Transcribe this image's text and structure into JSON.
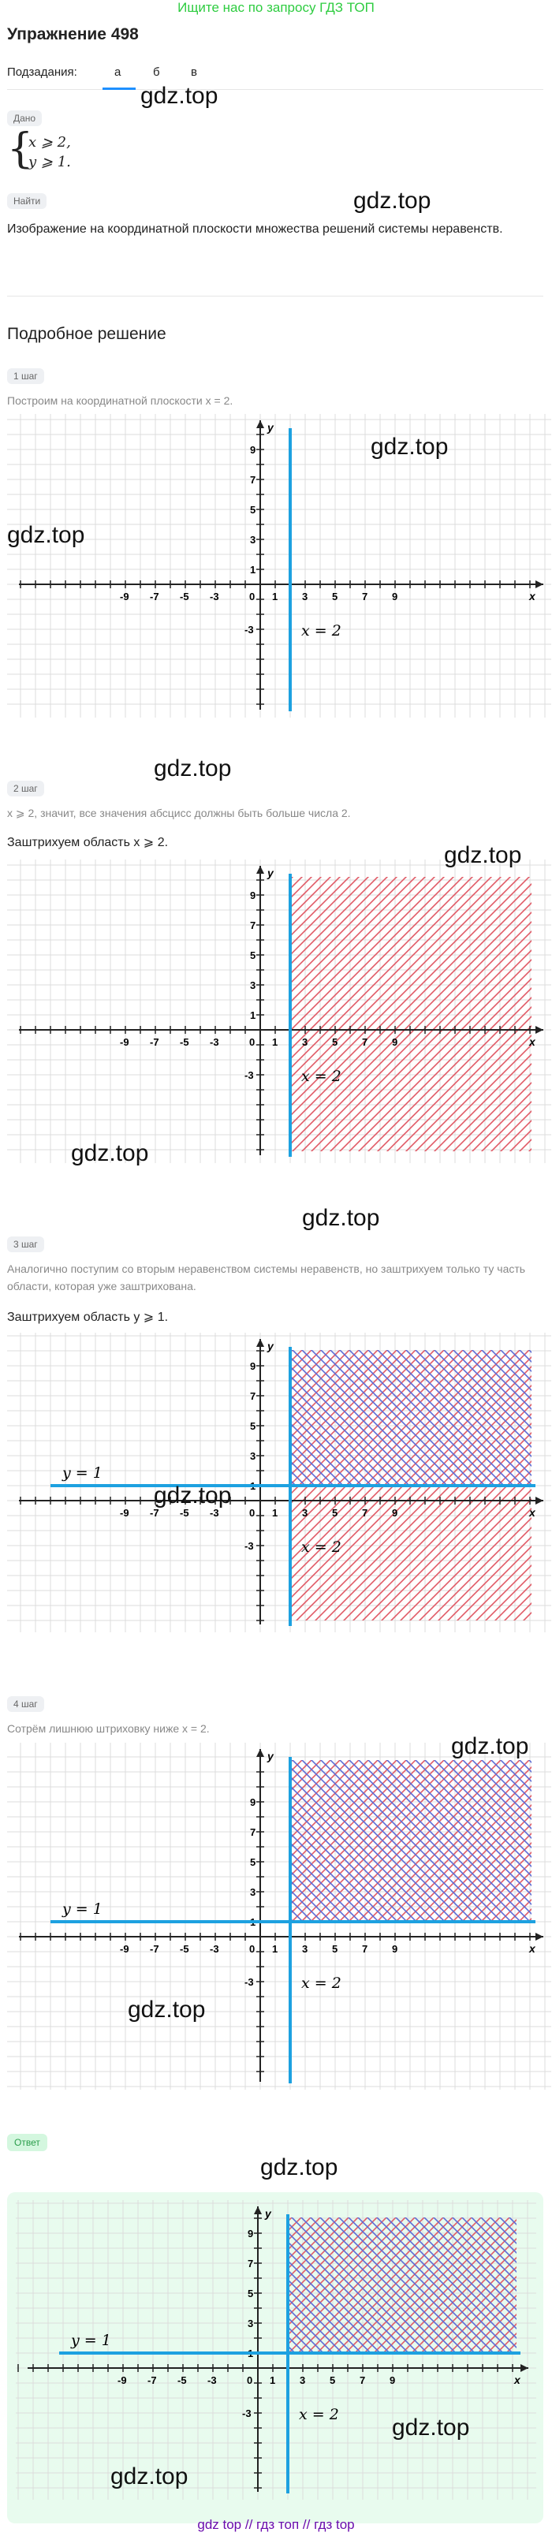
{
  "banner": "Ищите нас по запросу ГДЗ ТОП",
  "title": "Упражнение 498",
  "subtasks": {
    "label": "Подзадания:",
    "items": [
      "а",
      "б",
      "в"
    ],
    "active": 0
  },
  "given": {
    "chip": "Дано",
    "line1": "x ⩾ 2,",
    "line2": "y ⩾ 1."
  },
  "find": {
    "chip": "Найти",
    "text": "Изображение на координатной плоскости множества решений системы неравенств."
  },
  "solution_title": "Подробное решение",
  "steps": [
    {
      "chip": "1 шаг",
      "note": "Построим на координатной плоскости x = 2."
    },
    {
      "chip": "2 шаг",
      "note": "x ⩾ 2, значит, все значения абсцисс должны быть больше числа 2.",
      "bold": "Заштрихуем область x ⩾ 2."
    },
    {
      "chip": "3 шаг",
      "note": "Аналогично поступим со вторым неравенством системы неравенств, но заштрихуем только ту часть области, которая уже заштрихована.",
      "bold": "Заштрихуем область y ⩾ 1."
    },
    {
      "chip": "4 шаг",
      "note": "Сотрём лишнюю штриховку ниже x = 2."
    }
  ],
  "answer_chip": "Ответ",
  "watermark": "gdz.top",
  "footer": {
    "a": "gdz top",
    "sep1": " // ",
    "b": "гдз топ",
    "sep2": " // ",
    "c": "гдз top"
  },
  "graph": {
    "x_ticks": [
      "-9",
      "-7",
      "-5",
      "-3",
      "0",
      "1",
      "3",
      "5",
      "7",
      "9"
    ],
    "y_ticks": [
      "9",
      "7",
      "5",
      "3",
      "1",
      "-3"
    ],
    "x_axis_label": "x",
    "y_axis_label": "y",
    "line_x_label": "x = 2",
    "line_y_label": "y = 1",
    "colors": {
      "line": "#1da1e0",
      "hatch_red": "#e05a66",
      "hatch_blue": "#5b6bd6",
      "grid": "#dcdcdc"
    }
  }
}
